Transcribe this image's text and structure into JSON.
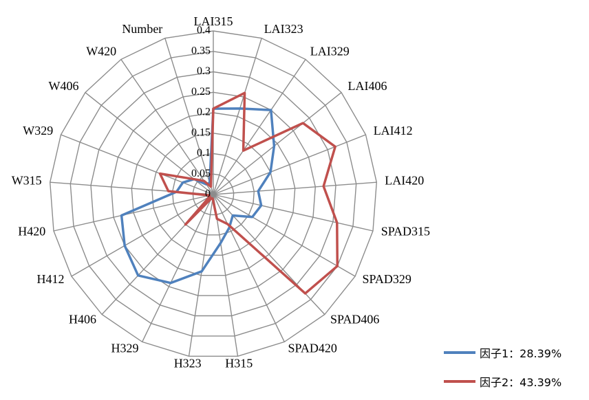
{
  "chart_data": {
    "type": "radar",
    "categories": [
      "LAI315",
      "LAI323",
      "LAI329",
      "LAI406",
      "LAI412",
      "LAI420",
      "SPAD315",
      "SPAD329",
      "SPAD406",
      "SPAD420",
      "H315",
      "H323",
      "H329",
      "H406",
      "H412",
      "H420",
      "W315",
      "W329",
      "W406",
      "W420",
      "Number"
    ],
    "series": [
      {
        "name": "因子1：28.39%",
        "color": "#4F81BD",
        "values": [
          0.21,
          0.22,
          0.25,
          0.19,
          0.15,
          0.11,
          0.12,
          0.11,
          0.07,
          0.09,
          0.12,
          0.19,
          0.24,
          0.27,
          0.25,
          0.23,
          0.09,
          0.08,
          0.06,
          0.03,
          0.03
        ]
      },
      {
        "name": "因子2：43.39%",
        "color": "#C0504D",
        "values": [
          0.21,
          0.26,
          0.13,
          0.28,
          0.32,
          0.27,
          0.31,
          0.35,
          0.33,
          0.08,
          0.06,
          0.01,
          0.01,
          0.1,
          0.01,
          0.01,
          0.11,
          0.14,
          0.06,
          0.04,
          0.02
        ]
      }
    ],
    "rlim": [
      0,
      0.4
    ],
    "ticks": [
      "0",
      "0.05",
      "0.1",
      "0.15",
      "0.2",
      "0.25",
      "0.3",
      "0.35",
      "0.4"
    ],
    "grid": true,
    "legend_position": "bottom-right"
  }
}
